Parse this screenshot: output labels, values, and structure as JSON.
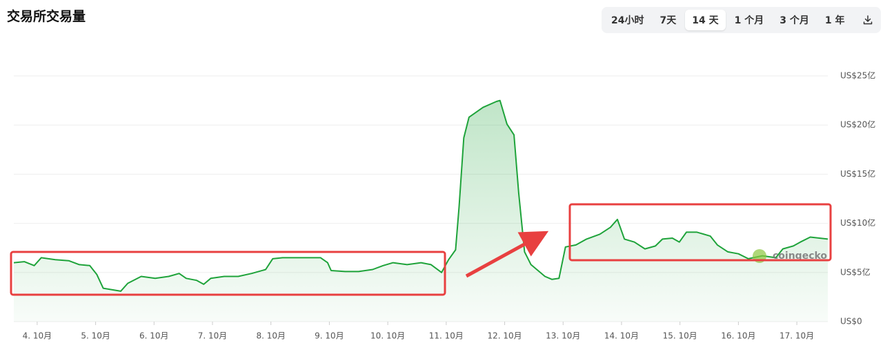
{
  "chart_data": {
    "type": "area",
    "title": "交易所交易量",
    "watermark": "coingecko",
    "color": "#1ea33a",
    "grid": true,
    "xlim": [
      3.6,
      17.53
    ],
    "xticks": [
      {
        "value": 4,
        "label": "4. 10月"
      },
      {
        "value": 5,
        "label": "5. 10月"
      },
      {
        "value": 6,
        "label": "6. 10月"
      },
      {
        "value": 7,
        "label": "7. 10月"
      },
      {
        "value": 8,
        "label": "8. 10月"
      },
      {
        "value": 9,
        "label": "9. 10月"
      },
      {
        "value": 10,
        "label": "10. 10月"
      },
      {
        "value": 11,
        "label": "11. 10月"
      },
      {
        "value": 12,
        "label": "12. 10月"
      },
      {
        "value": 13,
        "label": "13. 10月"
      },
      {
        "value": 14,
        "label": "14. 10月"
      },
      {
        "value": 15,
        "label": "15. 10月"
      },
      {
        "value": 16,
        "label": "16. 10月"
      },
      {
        "value": 17,
        "label": "17. 10月"
      }
    ],
    "ylim": [
      0,
      25
    ],
    "yticks": [
      {
        "value": 0,
        "label": "US$0"
      },
      {
        "value": 5,
        "label": "US$5亿"
      },
      {
        "value": 10,
        "label": "US$10亿"
      },
      {
        "value": 15,
        "label": "US$15亿"
      },
      {
        "value": 20,
        "label": "US$20亿"
      },
      {
        "value": 25,
        "label": "US$25亿"
      }
    ],
    "x": [
      3.6,
      3.78,
      3.95,
      4.07,
      4.31,
      4.54,
      4.72,
      4.9,
      5.02,
      5.13,
      5.43,
      5.55,
      5.78,
      6.02,
      6.25,
      6.43,
      6.55,
      6.73,
      6.85,
      6.97,
      7.2,
      7.44,
      7.67,
      7.91,
      8.03,
      8.2,
      8.56,
      8.85,
      8.97,
      9.03,
      9.27,
      9.5,
      9.74,
      9.92,
      10.09,
      10.33,
      10.57,
      10.74,
      10.92,
      11.04,
      11.16,
      11.22,
      11.3,
      11.39,
      11.63,
      11.86,
      11.92,
      12.04,
      12.16,
      12.24,
      12.34,
      12.45,
      12.69,
      12.81,
      12.93,
      13.04,
      13.22,
      13.4,
      13.63,
      13.81,
      13.93,
      14.05,
      14.22,
      14.4,
      14.58,
      14.7,
      14.87,
      14.99,
      15.11,
      15.29,
      15.52,
      15.64,
      15.82,
      16.0,
      16.17,
      16.41,
      16.64,
      16.76,
      16.94,
      17.06,
      17.23,
      17.53
    ],
    "series": [
      {
        "name": "交易量",
        "color": "#1ea33a",
        "values": [
          6.0,
          6.1,
          5.7,
          6.5,
          6.3,
          6.2,
          5.8,
          5.7,
          4.8,
          3.4,
          3.1,
          3.9,
          4.6,
          4.4,
          4.6,
          4.9,
          4.4,
          4.2,
          3.8,
          4.4,
          4.6,
          4.6,
          4.9,
          5.3,
          6.4,
          6.5,
          6.5,
          6.5,
          6.0,
          5.2,
          5.1,
          5.1,
          5.3,
          5.7,
          6.0,
          5.8,
          6.0,
          5.8,
          5.0,
          6.3,
          7.3,
          11.7,
          18.7,
          20.8,
          21.8,
          22.4,
          22.5,
          20.1,
          19.0,
          13.1,
          7.1,
          5.8,
          4.6,
          4.3,
          4.4,
          7.6,
          7.8,
          8.4,
          8.9,
          9.6,
          10.4,
          8.4,
          8.1,
          7.4,
          7.7,
          8.4,
          8.5,
          8.1,
          9.1,
          9.1,
          8.7,
          7.8,
          7.1,
          6.9,
          6.4,
          6.7,
          6.5,
          7.4,
          7.7,
          8.1,
          8.6,
          8.4
        ]
      }
    ]
  },
  "toolbar": {
    "buttons": [
      "24小时",
      "7天",
      "14 天",
      "1 个月",
      "3 个月",
      "1 年"
    ],
    "selected": 2
  }
}
